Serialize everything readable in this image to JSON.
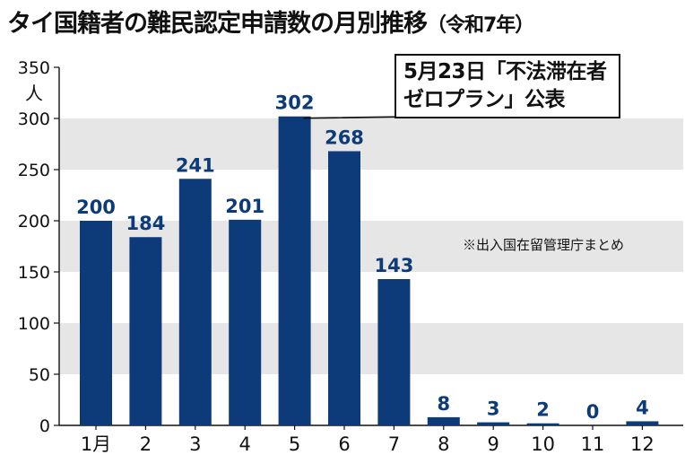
{
  "title": "タイ国籍者の難民認定申請数の月別推移",
  "subtitle": "（令和7年）",
  "annotation": {
    "line1": "5月23日「不法滞在者",
    "line2": "ゼロプラン」公表"
  },
  "source": "※出入国在留管理庁まとめ",
  "colors": {
    "bar": "#0d3b7a",
    "band": "#e6e6e6",
    "label": "#0d3b7a"
  },
  "chart_data": {
    "type": "bar",
    "title": "タイ国籍者の難民認定申請数の月別推移（令和7年）",
    "categories": [
      "1月",
      "2",
      "3",
      "4",
      "5",
      "6",
      "7",
      "8",
      "9",
      "10",
      "11",
      "12"
    ],
    "values": [
      200,
      184,
      241,
      201,
      302,
      268,
      143,
      8,
      3,
      2,
      0,
      4
    ],
    "ylabel": "人",
    "yticks": [
      0,
      50,
      100,
      150,
      200,
      250,
      300,
      350
    ],
    "ylim": [
      0,
      350
    ],
    "grid": "alternating horizontal bands",
    "data_labels": true
  }
}
